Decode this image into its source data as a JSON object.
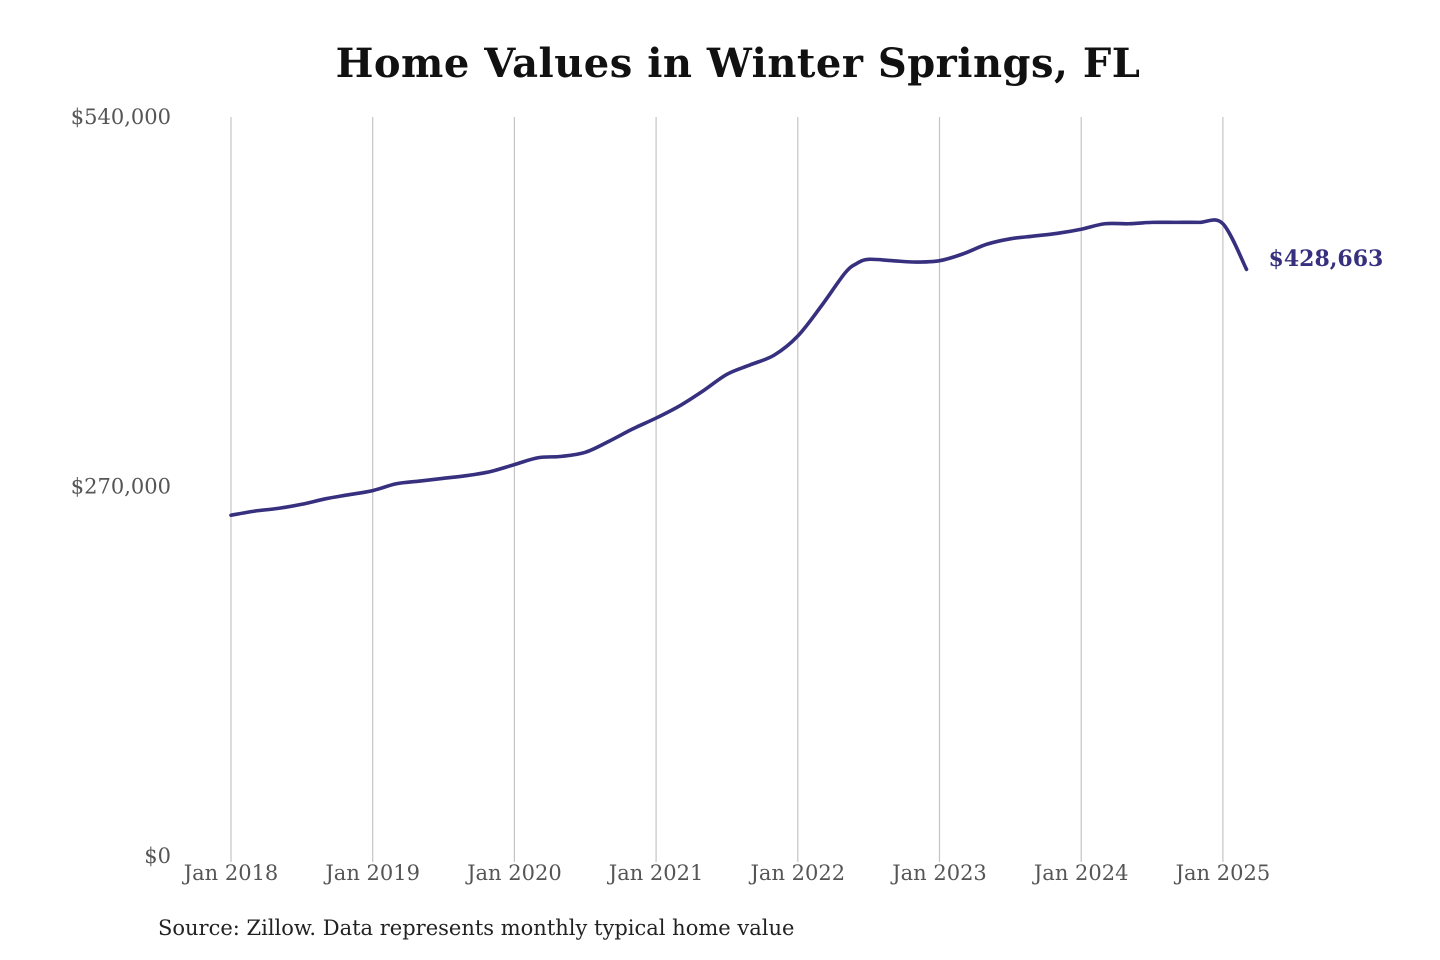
{
  "chart_data": {
    "type": "line",
    "title": "Home Values in Winter Springs, FL",
    "xlabel": "",
    "ylabel": "",
    "ylim": [
      0,
      540000
    ],
    "yticks": [
      {
        "value": 0,
        "label": "$0"
      },
      {
        "value": 270000,
        "label": "$270,000"
      },
      {
        "value": 540000,
        "label": "$540,000"
      }
    ],
    "xticks": [
      {
        "date": "2018-01",
        "label": "Jan 2018"
      },
      {
        "date": "2019-01",
        "label": "Jan 2019"
      },
      {
        "date": "2020-01",
        "label": "Jan 2020"
      },
      {
        "date": "2021-01",
        "label": "Jan 2021"
      },
      {
        "date": "2022-01",
        "label": "Jan 2022"
      },
      {
        "date": "2023-01",
        "label": "Jan 2023"
      },
      {
        "date": "2024-01",
        "label": "Jan 2024"
      },
      {
        "date": "2025-01",
        "label": "Jan 2025"
      }
    ],
    "xlim": [
      "2018-01",
      "2025-03"
    ],
    "grid": {
      "vertical": true,
      "horizontal": false
    },
    "series": [
      {
        "color": "#36307f",
        "x": [
          "2018-01",
          "2018-03",
          "2018-05",
          "2018-07",
          "2018-09",
          "2018-11",
          "2019-01",
          "2019-03",
          "2019-05",
          "2019-07",
          "2019-09",
          "2019-11",
          "2020-01",
          "2020-03",
          "2020-05",
          "2020-07",
          "2020-09",
          "2020-11",
          "2021-01",
          "2021-03",
          "2021-05",
          "2021-07",
          "2021-09",
          "2021-11",
          "2022-01",
          "2022-03",
          "2022-05",
          "2022-06",
          "2022-07",
          "2022-09",
          "2022-11",
          "2023-01",
          "2023-03",
          "2023-05",
          "2023-07",
          "2023-09",
          "2023-11",
          "2024-01",
          "2024-03",
          "2024-05",
          "2024-07",
          "2024-09",
          "2024-11",
          "2025-01",
          "2025-03"
        ],
        "y": [
          249000,
          252000,
          254000,
          257000,
          261000,
          264000,
          267000,
          272000,
          274000,
          276000,
          278000,
          281000,
          286000,
          291000,
          292000,
          295000,
          303000,
          312000,
          320000,
          329000,
          340000,
          352000,
          359000,
          366000,
          380000,
          402000,
          426000,
          433000,
          436000,
          435000,
          434000,
          435000,
          440000,
          447000,
          451000,
          453000,
          455000,
          458000,
          462000,
          462000,
          463000,
          463000,
          463000,
          462000,
          428663
        ]
      }
    ],
    "end_label": "$428,663",
    "source": "Source: Zillow. Data represents monthly typical home value"
  }
}
